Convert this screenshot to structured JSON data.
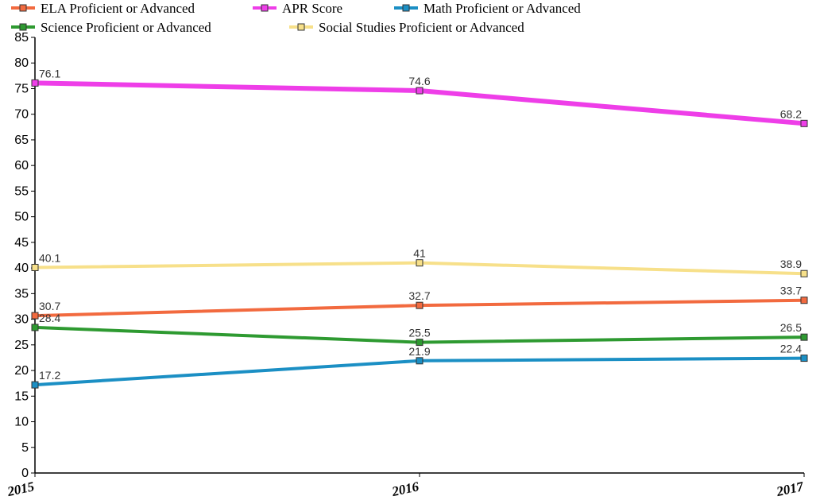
{
  "chart_data": {
    "type": "line",
    "categories": [
      "2015",
      "2016",
      "2017"
    ],
    "ylim": [
      0,
      85
    ],
    "yticks": [
      0,
      5,
      10,
      15,
      20,
      25,
      30,
      35,
      40,
      45,
      50,
      55,
      60,
      65,
      70,
      75,
      80,
      85
    ],
    "legend_position": "top",
    "grid": false,
    "series": [
      {
        "name": "ELA Proficient or Advanced",
        "color": "#f26a3f",
        "values": [
          30.7,
          32.7,
          33.7
        ],
        "labels": [
          "30.7",
          "32.7",
          "33.7"
        ]
      },
      {
        "name": "APR Score",
        "color": "#ee3ee8",
        "values": [
          76.1,
          74.6,
          68.2
        ],
        "labels": [
          "76.1",
          "74.6",
          "68.2"
        ]
      },
      {
        "name": "Math Proficient or Advanced",
        "color": "#1b8fc4",
        "values": [
          17.2,
          21.9,
          22.4
        ],
        "labels": [
          "17.2",
          "21.9",
          "22.4"
        ]
      },
      {
        "name": "Science Proficient or Advanced",
        "color": "#2e9a31",
        "values": [
          28.4,
          25.5,
          26.5
        ],
        "labels": [
          "28.4",
          "25.5",
          "26.5"
        ]
      },
      {
        "name": "Social Studies Proficient or Advanced",
        "color": "#f7e08a",
        "values": [
          40.1,
          41,
          38.9
        ],
        "labels": [
          "40.1",
          "41",
          "38.9"
        ]
      }
    ]
  }
}
